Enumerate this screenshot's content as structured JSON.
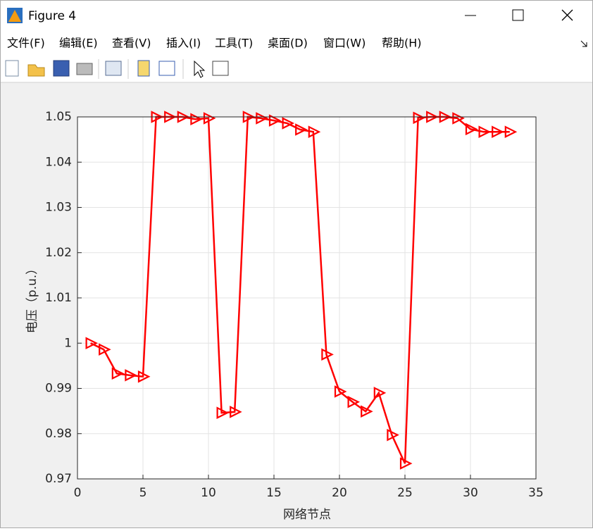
{
  "window": {
    "title": "Figure 4",
    "menu": [
      "文件(F)",
      "编辑(E)",
      "查看(V)",
      "插入(I)",
      "工具(T)",
      "桌面(D)",
      "窗口(W)",
      "帮助(H)"
    ]
  },
  "chart_data": {
    "type": "line",
    "xlabel": "网络节点",
    "ylabel": "电压（p.u.）",
    "x": [
      1,
      2,
      3,
      4,
      5,
      6,
      7,
      8,
      9,
      10,
      11,
      12,
      13,
      14,
      15,
      16,
      17,
      18,
      19,
      20,
      21,
      22,
      23,
      24,
      25,
      26,
      27,
      28,
      29,
      30,
      31,
      32,
      33
    ],
    "series": [
      {
        "color": "#ff0000",
        "marker": "triangle-right",
        "values": [
          1.0,
          0.9986,
          0.9933,
          0.9929,
          0.9926,
          1.05,
          1.05,
          1.05,
          1.0495,
          1.0497,
          0.9846,
          0.9848,
          1.05,
          1.0497,
          1.0492,
          1.0486,
          1.0472,
          1.0467,
          0.9975,
          0.9893,
          0.987,
          0.9849,
          0.989,
          0.9797,
          0.9734,
          1.0498,
          1.05,
          1.05,
          1.0497,
          1.0473,
          1.0467,
          1.0467,
          1.0467
        ]
      }
    ],
    "xlim": [
      0,
      35
    ],
    "xticks": [
      0,
      5,
      10,
      15,
      20,
      25,
      30,
      35
    ],
    "ylim": [
      0.97,
      1.05
    ],
    "yticks": [
      0.97,
      0.98,
      0.99,
      1,
      1.01,
      1.02,
      1.03,
      1.04,
      1.05
    ],
    "grid": true
  }
}
